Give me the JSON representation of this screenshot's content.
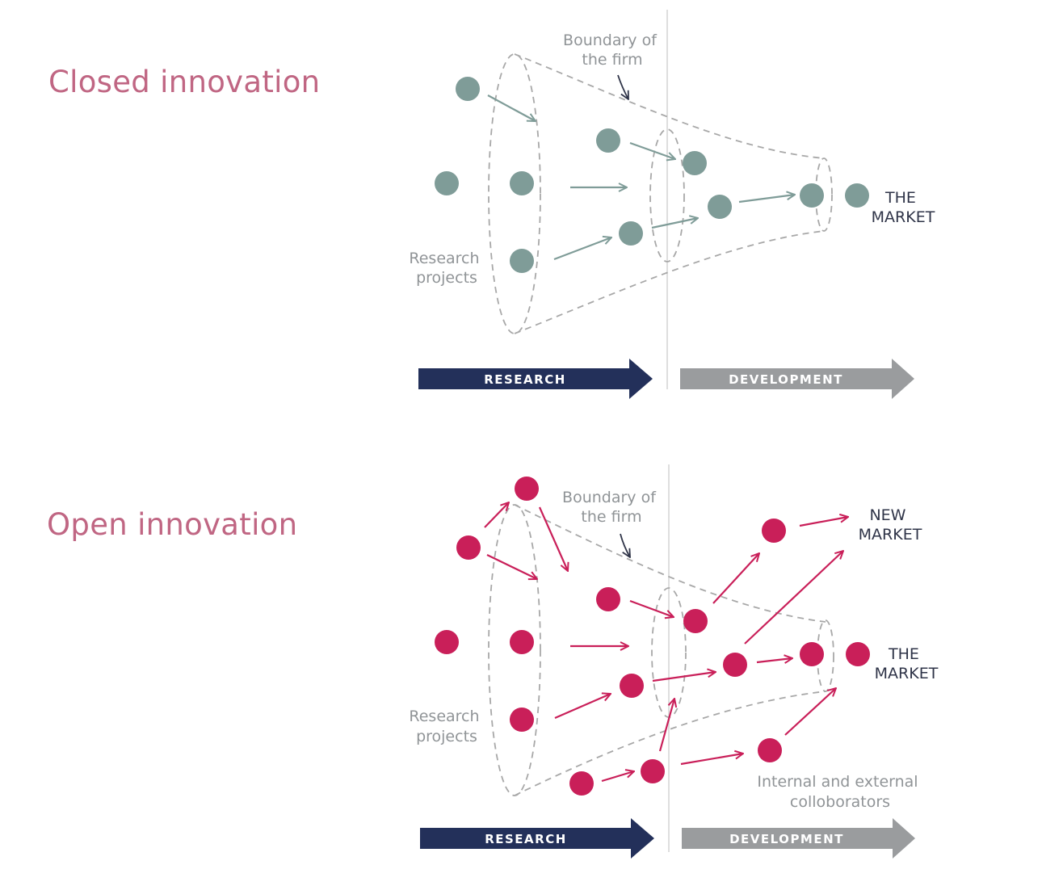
{
  "closed": {
    "title": "Closed innovation",
    "boundary_label": [
      "Boundary of",
      "the firm"
    ],
    "research_label": [
      "Research",
      "projects"
    ],
    "market_label": [
      "THE",
      "MARKET"
    ],
    "research_bar": "RESEARCH",
    "development_bar": "DEVELOPMENT"
  },
  "open": {
    "title": "Open innovation",
    "boundary_label": [
      "Boundary of",
      "the firm"
    ],
    "research_label": [
      "Research",
      "projects"
    ],
    "market_label": [
      "THE",
      "MARKET"
    ],
    "new_market_label": [
      "NEW",
      "MARKET"
    ],
    "collaborators_label": [
      "Internal and external",
      "colloborators"
    ],
    "research_bar": "RESEARCH",
    "development_bar": "DEVELOPMENT"
  },
  "colors": {
    "closed_dot": "#7f9c98",
    "open_dot": "#c91f59",
    "research_bar": "#23305a",
    "development_bar": "#9a9c9e",
    "title": "#c06683",
    "dashed_outline": "#a8a8a8"
  }
}
